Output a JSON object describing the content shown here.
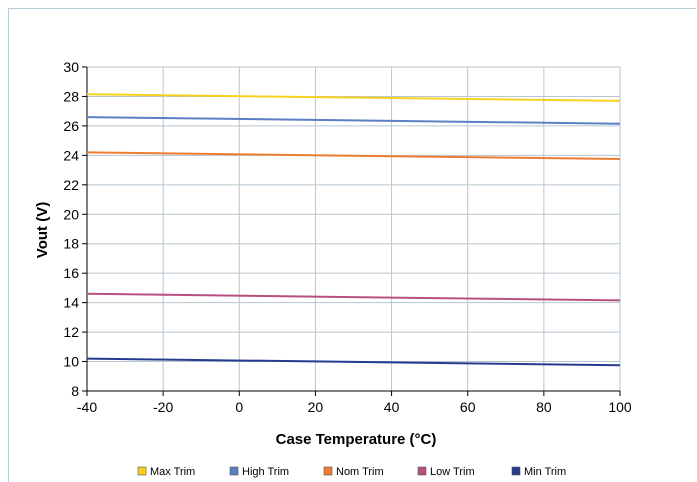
{
  "chart_data": {
    "type": "line",
    "title": "",
    "xlabel": "Case Temperature (°C)",
    "ylabel": "Vout (V)",
    "xlim": [
      -40,
      100
    ],
    "ylim": [
      8,
      30
    ],
    "x_ticks": [
      "-40",
      "-20",
      "0",
      "20",
      "40",
      "60",
      "80",
      "100"
    ],
    "y_ticks": [
      "8",
      "10",
      "12",
      "14",
      "16",
      "18",
      "20",
      "22",
      "24",
      "26",
      "28",
      "30"
    ],
    "grid": true,
    "legend_position": "bottom",
    "series": [
      {
        "name": "Max Trim",
        "color": "#f5d21f",
        "x": [
          -40,
          100
        ],
        "y": [
          28.15,
          27.7
        ]
      },
      {
        "name": "High Trim",
        "color": "#5b7fc4",
        "x": [
          -40,
          100
        ],
        "y": [
          26.6,
          26.15
        ]
      },
      {
        "name": "Nom Trim",
        "color": "#ed7d31",
        "x": [
          -40,
          100
        ],
        "y": [
          24.2,
          23.75
        ]
      },
      {
        "name": "Low Trim",
        "color": "#b84f7f",
        "x": [
          -40,
          100
        ],
        "y": [
          14.6,
          14.15
        ]
      },
      {
        "name": "Min Trim",
        "color": "#253b8f",
        "x": [
          -40,
          100
        ],
        "y": [
          10.2,
          9.75
        ]
      }
    ]
  }
}
